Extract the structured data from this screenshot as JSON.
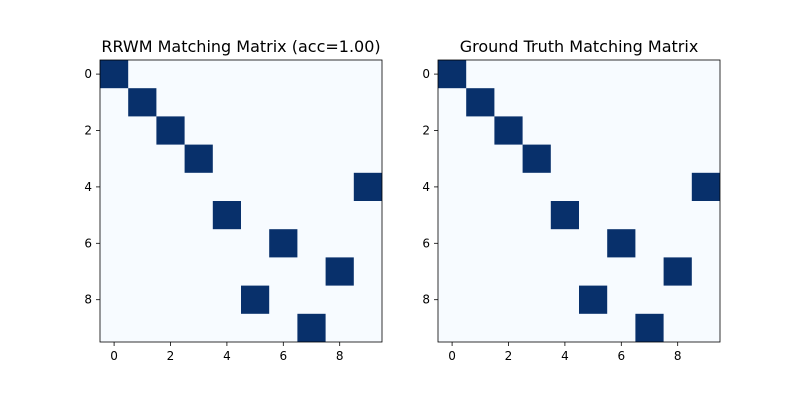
{
  "chart_data": [
    {
      "type": "heatmap",
      "title": "RRWM Matching Matrix (acc=1.00)",
      "rows": 10,
      "cols": 10,
      "x_ticks": [
        0,
        2,
        4,
        6,
        8
      ],
      "y_ticks": [
        0,
        2,
        4,
        6,
        8
      ],
      "matches": [
        [
          0,
          0
        ],
        [
          1,
          1
        ],
        [
          2,
          2
        ],
        [
          3,
          3
        ],
        [
          4,
          9
        ],
        [
          5,
          4
        ],
        [
          6,
          6
        ],
        [
          7,
          8
        ],
        [
          8,
          5
        ],
        [
          9,
          7
        ]
      ],
      "colors": {
        "high": "#08306b",
        "low": "#f7fbff"
      }
    },
    {
      "type": "heatmap",
      "title": "Ground Truth Matching Matrix",
      "rows": 10,
      "cols": 10,
      "x_ticks": [
        0,
        2,
        4,
        6,
        8
      ],
      "y_ticks": [
        0,
        2,
        4,
        6,
        8
      ],
      "matches": [
        [
          0,
          0
        ],
        [
          1,
          1
        ],
        [
          2,
          2
        ],
        [
          3,
          3
        ],
        [
          4,
          9
        ],
        [
          5,
          4
        ],
        [
          6,
          6
        ],
        [
          7,
          8
        ],
        [
          8,
          5
        ],
        [
          9,
          7
        ]
      ],
      "colors": {
        "high": "#08306b",
        "low": "#f7fbff"
      }
    }
  ]
}
